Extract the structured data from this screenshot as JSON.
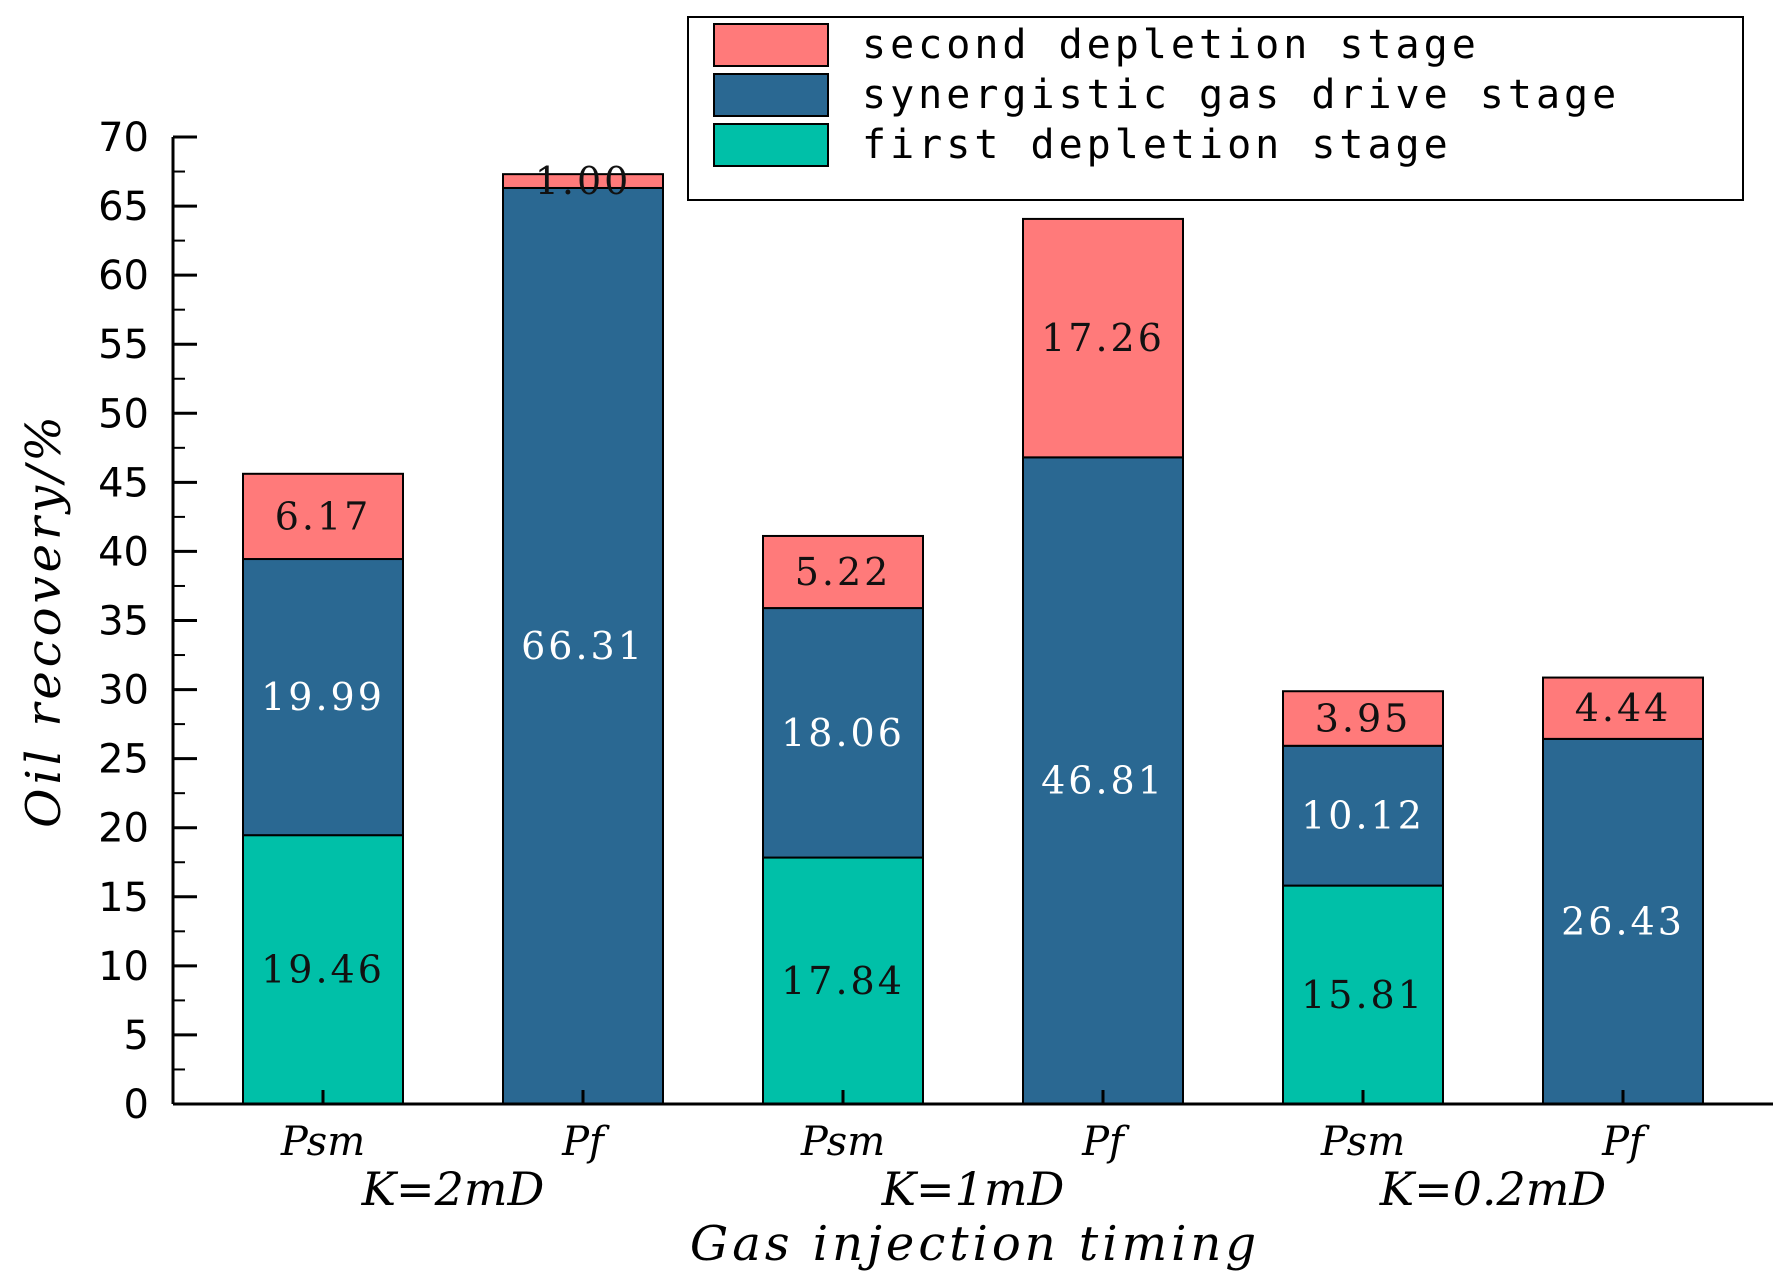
{
  "chart_data": {
    "type": "bar",
    "stacked": true,
    "title": "",
    "xlabel": "Gas injection timing",
    "ylabel": "Oil recovery/%",
    "ylim": [
      0,
      70
    ],
    "y_major_step": 5,
    "y_ticks": [
      "0",
      "5",
      "10",
      "15",
      "20",
      "25",
      "30",
      "35",
      "40",
      "45",
      "50",
      "55",
      "60",
      "65",
      "70"
    ],
    "categories": [
      "Psm",
      "Pf",
      "Psm",
      "Pf",
      "Psm",
      "Pf"
    ],
    "groups": [
      {
        "label": "K=2mD",
        "span": [
          0,
          1
        ]
      },
      {
        "label": "K=1mD",
        "span": [
          2,
          3
        ]
      },
      {
        "label": "K=0.2mD",
        "span": [
          4,
          5
        ]
      }
    ],
    "series": [
      {
        "name": "first depletion stage",
        "color": "#00c0a8",
        "label_color": "#111111",
        "values": [
          19.46,
          0,
          17.84,
          0,
          15.81,
          0
        ],
        "labels": [
          "19.46",
          "",
          "17.84",
          "",
          "15.81",
          ""
        ]
      },
      {
        "name": "synergistic gas drive stage",
        "color": "#2a6892",
        "label_color": "#ffffff",
        "values": [
          19.99,
          66.31,
          18.06,
          46.81,
          10.12,
          26.43
        ],
        "labels": [
          "19.99",
          "66.31",
          "18.06",
          "46.81",
          "10.12",
          "26.43"
        ]
      },
      {
        "name": "second depletion stage",
        "color": "#ff7a7a",
        "label_color": "#111111",
        "values": [
          6.17,
          1.0,
          5.22,
          17.26,
          3.95,
          4.44
        ],
        "labels": [
          "6.17",
          "1.00",
          "5.22",
          "17.26",
          "3.95",
          "4.44"
        ]
      }
    ],
    "legend": {
      "position": "top-right",
      "order": [
        "second depletion stage",
        "synergistic gas drive stage",
        "first depletion stage"
      ]
    }
  }
}
